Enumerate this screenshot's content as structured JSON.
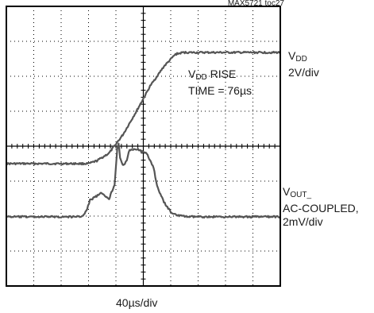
{
  "figure_ref": "MAX5721 toc27",
  "chart_data": {
    "type": "line",
    "title": "",
    "xlabel": "40µs/div",
    "ylabel": "",
    "grid": true,
    "divisions": {
      "x": 10,
      "y": 8
    },
    "x_per_div": "40µs",
    "xlim": [
      0,
      400
    ],
    "x_unit": "µs",
    "annotation": {
      "line1_main": "V",
      "line1_sub": "DD",
      "line1_rest": " RISE",
      "line2": "TIME = 76µs"
    },
    "series": [
      {
        "label_main": "V",
        "label_sub": "DD",
        "label_lines": [
          "2V/div"
        ],
        "scale": "2V/div",
        "x": [
          0,
          40,
          80,
          120,
          132,
          150,
          170,
          190,
          210,
          230,
          247,
          258,
          400
        ],
        "y_div": [
          -0.5,
          -0.5,
          -0.5,
          -0.5,
          -0.42,
          -0.2,
          0.32,
          1.0,
          1.72,
          2.28,
          2.63,
          2.68,
          2.68
        ]
      },
      {
        "label_main": "V",
        "label_sub": "OUT_",
        "label_lines": [
          "AC-COUPLED,",
          "2mV/div"
        ],
        "scale": "2mV/div",
        "x": [
          0,
          80,
          100,
          112,
          118,
          122,
          138,
          150,
          158,
          162,
          164,
          166,
          170,
          173,
          176,
          180,
          190,
          205,
          215,
          220,
          230,
          240,
          250,
          265,
          290,
          400
        ],
        "y_div": [
          -2.02,
          -2.02,
          -2.02,
          -2.0,
          -1.8,
          -1.55,
          -1.35,
          -1.5,
          -1.1,
          -0.05,
          0.08,
          -0.35,
          -0.55,
          -0.52,
          -0.38,
          -0.1,
          -0.08,
          -0.22,
          -0.6,
          -1.15,
          -1.6,
          -1.88,
          -1.98,
          -2.02,
          -2.02,
          -2.02
        ]
      }
    ]
  }
}
